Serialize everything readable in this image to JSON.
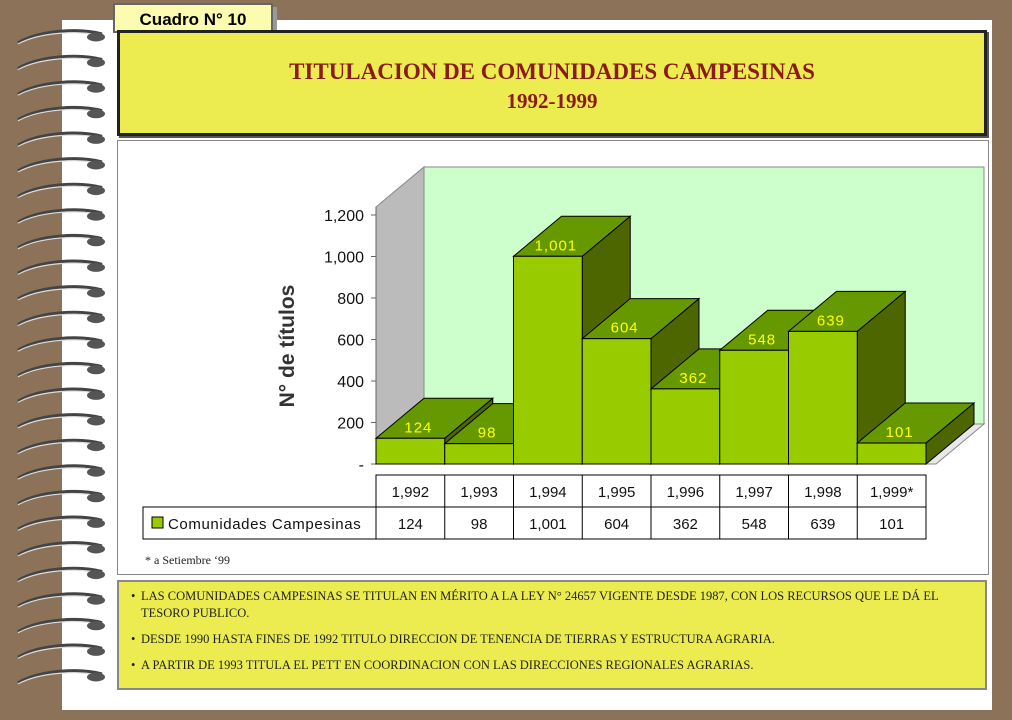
{
  "badge": {
    "label": "Cuadro N° 10"
  },
  "title": {
    "line1": "TITULACION DE COMUNIDADES CAMPESINAS",
    "line2": "1992-1999"
  },
  "footnote": "*  a Setiembre ‘99",
  "notes": [
    "LAS COMUNIDADES CAMPESINAS SE TITULAN EN MÉRITO A LA LEY N° 24657 VIGENTE DESDE 1987, CON LOS RECURSOS QUE LE DÁ EL TESORO PUBLICO.",
    "DESDE 1990 HASTA FINES DE 1992 TITULO DIRECCION DE TENENCIA DE TIERRAS Y ESTRUCTURA AGRARIA.",
    "A PARTIR DE 1993 TITULA EL PETT EN COORDINACION CON LAS DIRECCIONES REGIONALES AGRARIAS."
  ],
  "colors": {
    "bar_front": "#99cc00",
    "bar_top": "#669900",
    "bar_side": "#4d6600",
    "wall": "#ccffcc",
    "label_text": "#ffff00"
  },
  "chart_data": {
    "type": "bar",
    "title": "",
    "xlabel": "",
    "ylabel": "N° de títulos",
    "categories": [
      "1,992",
      "1,993",
      "1,994",
      "1,995",
      "1,996",
      "1,997",
      "1,998",
      "1,999*"
    ],
    "series": [
      {
        "name": "Comunidades Campesinas",
        "values": [
          124,
          98,
          1001,
          604,
          362,
          548,
          639,
          101
        ],
        "labels": [
          "124",
          "98",
          "1,001",
          "604",
          "362",
          "548",
          "639",
          "101"
        ]
      }
    ],
    "ylim": [
      0,
      1200
    ],
    "yticks": [
      0,
      200,
      400,
      600,
      800,
      1000,
      1200
    ],
    "ytick_labels": [
      "-",
      "200",
      "400",
      "600",
      "800",
      "1,000",
      "1,200"
    ],
    "grid": false,
    "legend": "data-table"
  }
}
